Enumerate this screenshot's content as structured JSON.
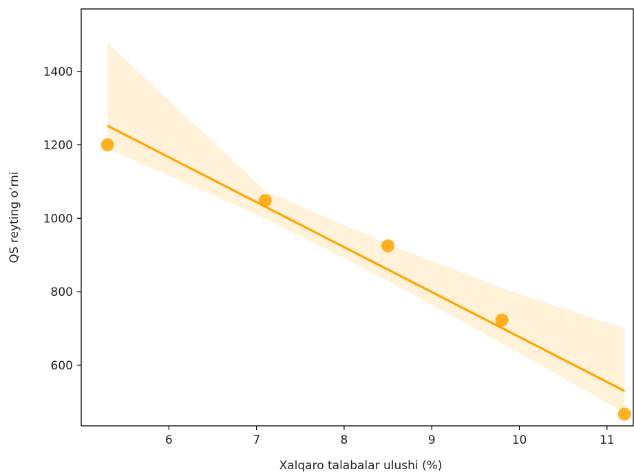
{
  "chart_data": {
    "type": "scatter",
    "title": "",
    "xlabel": "Xalqaro talabalar ulushi (%)",
    "ylabel": "QS reyting o’rni",
    "xlim": [
      5.0,
      11.3
    ],
    "ylim": [
      435,
      1570
    ],
    "x_ticks": [
      6,
      7,
      8,
      9,
      10,
      11
    ],
    "y_ticks": [
      600,
      800,
      1000,
      1200,
      1400
    ],
    "grid": false,
    "series": [
      {
        "kind": "points",
        "x": [
          5.3,
          7.1,
          8.5,
          9.8,
          11.2
        ],
        "y": [
          1200,
          1048,
          925,
          723,
          467
        ],
        "color": "#ffa500"
      }
    ],
    "regression_line": {
      "x": [
        5.3,
        11.2
      ],
      "y": [
        1252,
        530
      ],
      "color": "#ffa500"
    },
    "confidence_band": {
      "x": [
        5.3,
        7.1,
        8.5,
        9.8,
        11.2
      ],
      "upper": [
        1478,
        1075,
        930,
        810,
        700
      ],
      "lower": [
        1190,
        1000,
        830,
        660,
        470
      ],
      "color": "#ffa500",
      "opacity": 0.15
    }
  }
}
